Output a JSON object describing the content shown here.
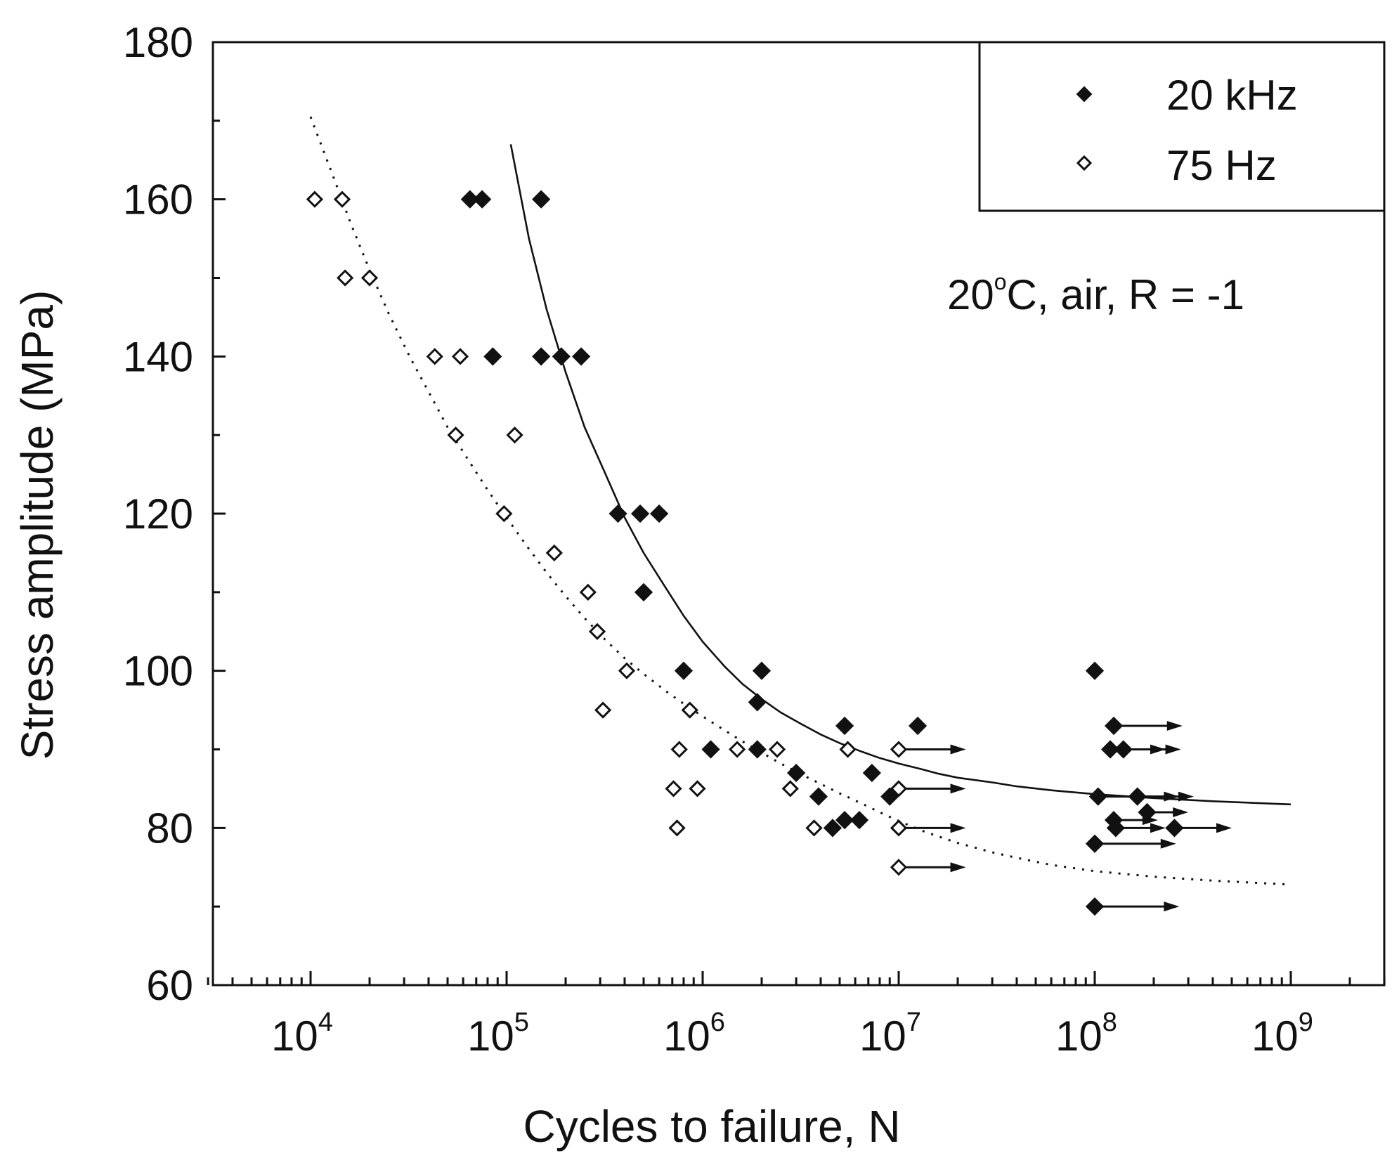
{
  "chart_data": {
    "type": "scatter",
    "title": "",
    "xlabel": "Cycles to failure, N",
    "ylabel": "Stress amplitude (MPa)",
    "xscale": "log",
    "xlim": [
      3000,
      5000000000
    ],
    "ylim": [
      60,
      180
    ],
    "yticks": [
      60,
      80,
      100,
      120,
      140,
      160,
      180
    ],
    "xticks": [
      {
        "value": 10000,
        "base": "10",
        "exp": "4"
      },
      {
        "value": 100000,
        "base": "10",
        "exp": "5"
      },
      {
        "value": 1000000,
        "base": "10",
        "exp": "6"
      },
      {
        "value": 10000000,
        "base": "10",
        "exp": "7"
      },
      {
        "value": 100000000,
        "base": "10",
        "exp": "8"
      },
      {
        "value": 1000000000,
        "base": "10",
        "exp": "9"
      }
    ],
    "legend": {
      "position": "top-right"
    },
    "annotation": {
      "prefix": "20",
      "degree": "o",
      "suffix": "C, air, R = -1"
    },
    "series": [
      {
        "name": "20 kHz",
        "marker": "filled-diamond",
        "color": "#111111",
        "points": [
          [
            65000,
            160
          ],
          [
            75000,
            160
          ],
          [
            150000,
            160
          ],
          [
            85000,
            140
          ],
          [
            150000,
            140
          ],
          [
            190000,
            140
          ],
          [
            240000,
            140
          ],
          [
            370000,
            120
          ],
          [
            480000,
            120
          ],
          [
            600000,
            120
          ],
          [
            500000,
            110
          ],
          [
            800000,
            100
          ],
          [
            2000000,
            100
          ],
          [
            1900000,
            96
          ],
          [
            5300000,
            93
          ],
          [
            12500000,
            93
          ],
          [
            1100000,
            90
          ],
          [
            1900000,
            90
          ],
          [
            3000000,
            87
          ],
          [
            7300000,
            87
          ],
          [
            3900000,
            84
          ],
          [
            9000000,
            84
          ],
          [
            4600000,
            80
          ],
          [
            5300000,
            81
          ],
          [
            6300000,
            81
          ]
        ],
        "runouts": [
          [
            100000000,
            100,
            null
          ],
          [
            125000000,
            93,
            280000000
          ],
          [
            120000000,
            90,
            230000000
          ],
          [
            140000000,
            90,
            275000000
          ],
          [
            104000000,
            84,
            270000000
          ],
          [
            165000000,
            84,
            320000000
          ],
          [
            125000000,
            81,
            210000000
          ],
          [
            185000000,
            82,
            300000000
          ],
          [
            128000000,
            80,
            230000000
          ],
          [
            255000000,
            80,
            500000000
          ],
          [
            100000000,
            78,
            260000000
          ],
          [
            100000000,
            70,
            270000000
          ]
        ],
        "fit": [
          [
            105000,
            167
          ],
          [
            130000,
            155
          ],
          [
            160000,
            146
          ],
          [
            200000,
            138
          ],
          [
            250000,
            131
          ],
          [
            320000,
            125
          ],
          [
            400000,
            119.5
          ],
          [
            500000,
            115
          ],
          [
            650000,
            110.5
          ],
          [
            800000,
            107
          ],
          [
            1000000,
            103.7
          ],
          [
            1300000,
            100.5
          ],
          [
            1600000,
            98.3
          ],
          [
            2000000,
            96.4
          ],
          [
            2500000,
            94.7
          ],
          [
            3200000,
            93.2
          ],
          [
            4000000,
            91.9
          ],
          [
            5000000,
            90.8
          ],
          [
            6500000,
            89.7
          ],
          [
            8000000,
            88.9
          ],
          [
            10000000,
            88.2
          ],
          [
            13000000,
            87.5
          ],
          [
            16000000,
            86.9
          ],
          [
            20000000,
            86.4
          ],
          [
            30000000,
            85.8
          ],
          [
            40000000,
            85.3
          ],
          [
            60000000,
            84.8
          ],
          [
            100000000,
            84.3
          ],
          [
            200000000,
            83.8
          ],
          [
            400000000,
            83.4
          ],
          [
            1000000000,
            83
          ]
        ]
      },
      {
        "name": "75 Hz",
        "marker": "open-diamond",
        "color": "#111111",
        "points": [
          [
            10500,
            160
          ],
          [
            14500,
            160
          ],
          [
            15000,
            150
          ],
          [
            20000,
            150
          ],
          [
            43000,
            140
          ],
          [
            58000,
            140
          ],
          [
            55000,
            130
          ],
          [
            110000,
            130
          ],
          [
            97000,
            120
          ],
          [
            175000,
            115
          ],
          [
            260000,
            110
          ],
          [
            290000,
            105
          ],
          [
            410000,
            100
          ],
          [
            860000,
            95
          ],
          [
            310000,
            95
          ],
          [
            760000,
            90
          ],
          [
            1500000,
            90
          ],
          [
            2400000,
            90
          ],
          [
            5500000,
            90
          ],
          [
            710000,
            85
          ],
          [
            940000,
            85
          ],
          [
            2800000,
            85
          ],
          [
            740000,
            80
          ],
          [
            3700000,
            80
          ]
        ],
        "runouts": [
          [
            10000000,
            90,
            22000000
          ],
          [
            10000000,
            85,
            22000000
          ],
          [
            10000000,
            80,
            22000000
          ],
          [
            10000000,
            75,
            22000000
          ]
        ],
        "fit": [
          [
            10000,
            170.5
          ],
          [
            13000,
            163
          ],
          [
            16000,
            157
          ],
          [
            20000,
            151
          ],
          [
            25000,
            145.5
          ],
          [
            32000,
            140
          ],
          [
            40000,
            135.5
          ],
          [
            50000,
            131
          ],
          [
            65000,
            126.5
          ],
          [
            80000,
            123
          ],
          [
            100000,
            119.5
          ],
          [
            130000,
            115.5
          ],
          [
            160000,
            112.5
          ],
          [
            200000,
            109.5
          ],
          [
            250000,
            106.7
          ],
          [
            320000,
            103.9
          ],
          [
            400000,
            101.6
          ],
          [
            500000,
            99.6
          ],
          [
            650000,
            97.4
          ],
          [
            800000,
            95.8
          ],
          [
            1000000,
            94.2
          ],
          [
            1300000,
            92.4
          ],
          [
            1600000,
            91
          ],
          [
            2000000,
            89.6
          ],
          [
            2500000,
            88.2
          ],
          [
            3200000,
            86.8
          ],
          [
            4000000,
            85.6
          ],
          [
            5000000,
            84.4
          ],
          [
            6500000,
            83.1
          ],
          [
            8000000,
            82
          ],
          [
            10000000,
            80.9
          ],
          [
            13000000,
            79.7
          ],
          [
            16000000,
            78.9
          ],
          [
            20000000,
            78.1
          ],
          [
            30000000,
            76.9
          ],
          [
            40000000,
            76.2
          ],
          [
            60000000,
            75.3
          ],
          [
            100000000,
            74.5
          ],
          [
            200000000,
            73.8
          ],
          [
            400000000,
            73.3
          ],
          [
            1000000000,
            72.8
          ]
        ]
      }
    ]
  }
}
